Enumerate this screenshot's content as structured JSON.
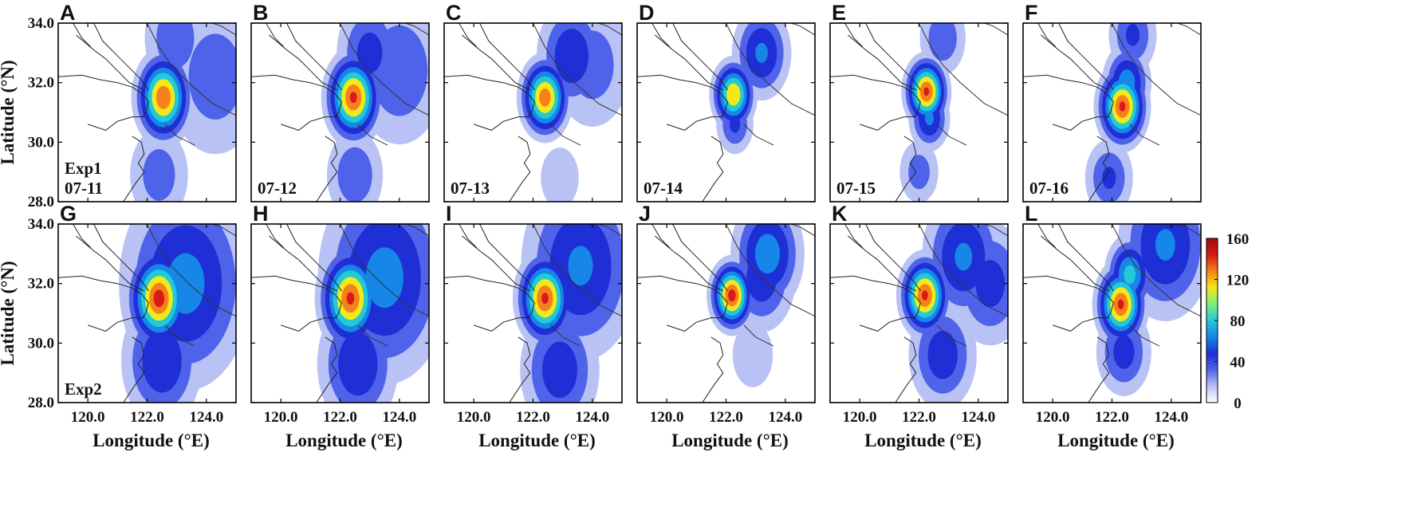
{
  "chart_data": {
    "type": "heatmap",
    "x_axis": {
      "label": "Longitude (°E)",
      "range": [
        119,
        125
      ],
      "ticks": [
        120.0,
        122.0,
        124.0
      ],
      "tick_labels": [
        "120.0",
        "122.0",
        "124.0"
      ]
    },
    "y_axis": {
      "label": "Latitude (°N)",
      "range": [
        28,
        34
      ],
      "ticks": [
        28.0,
        30.0,
        32.0,
        34.0
      ],
      "tick_labels": [
        "28.0",
        "30.0",
        "32.0",
        "34.0"
      ]
    },
    "colorbar": {
      "range": [
        0,
        160
      ],
      "ticks": [
        0,
        40,
        80,
        120,
        160
      ],
      "tick_labels": [
        "0",
        "40",
        "80",
        "120",
        "160"
      ],
      "colors": [
        "#ffffff",
        "#b8c2f4",
        "#4f63ea",
        "#1f2fd6",
        "#1686e8",
        "#22c9d6",
        "#7ff07a",
        "#f2e91a",
        "#f6811a",
        "#d91a16",
        "#9a0a0a"
      ]
    },
    "grid": false,
    "panels": [
      {
        "letter": "A",
        "row": 0,
        "experiment": "Exp1",
        "date": "07-11",
        "annotations": [
          "Exp1",
          "07-11"
        ]
      },
      {
        "letter": "B",
        "row": 0,
        "experiment": "Exp1",
        "date": "07-12",
        "annotations": [
          "07-12"
        ]
      },
      {
        "letter": "C",
        "row": 0,
        "experiment": "Exp1",
        "date": "07-13",
        "annotations": [
          "07-13"
        ]
      },
      {
        "letter": "D",
        "row": 0,
        "experiment": "Exp1",
        "date": "07-14",
        "annotations": [
          "07-14"
        ]
      },
      {
        "letter": "E",
        "row": 0,
        "experiment": "Exp1",
        "date": "07-15",
        "annotations": [
          "07-15"
        ]
      },
      {
        "letter": "F",
        "row": 0,
        "experiment": "Exp1",
        "date": "07-16",
        "annotations": [
          "07-16"
        ]
      },
      {
        "letter": "G",
        "row": 1,
        "experiment": "Exp2",
        "date": "07-11",
        "annotations": [
          "Exp2"
        ]
      },
      {
        "letter": "H",
        "row": 1,
        "experiment": "Exp2",
        "date": "07-12",
        "annotations": []
      },
      {
        "letter": "I",
        "row": 1,
        "experiment": "Exp2",
        "date": "07-13",
        "annotations": []
      },
      {
        "letter": "J",
        "row": 1,
        "experiment": "Exp2",
        "date": "07-14",
        "annotations": []
      },
      {
        "letter": "K",
        "row": 1,
        "experiment": "Exp2",
        "date": "07-15",
        "annotations": []
      },
      {
        "letter": "L",
        "row": 1,
        "experiment": "Exp2",
        "date": "07-16",
        "annotations": []
      }
    ],
    "hotspots": [
      [
        {
          "lon": 122.55,
          "lat": 31.5,
          "peak": 145,
          "spread": 0.45
        },
        {
          "lon": 122.95,
          "lat": 33.5,
          "peak": 35,
          "spread": 0.6
        },
        {
          "lon": 124.3,
          "lat": 32.2,
          "peak": 30,
          "spread": 1.0
        },
        {
          "lon": 122.4,
          "lat": 28.9,
          "peak": 30,
          "spread": 0.6
        }
      ],
      [
        {
          "lon": 122.45,
          "lat": 31.5,
          "peak": 150,
          "spread": 0.45
        },
        {
          "lon": 123.0,
          "lat": 33.0,
          "peak": 45,
          "spread": 0.6
        },
        {
          "lon": 124.0,
          "lat": 32.4,
          "peak": 35,
          "spread": 0.9
        },
        {
          "lon": 122.5,
          "lat": 28.9,
          "peak": 35,
          "spread": 0.55
        }
      ],
      [
        {
          "lon": 122.4,
          "lat": 31.5,
          "peak": 140,
          "spread": 0.4
        },
        {
          "lon": 123.3,
          "lat": 32.9,
          "peak": 55,
          "spread": 0.6
        },
        {
          "lon": 124.0,
          "lat": 32.6,
          "peak": 30,
          "spread": 0.8
        },
        {
          "lon": 122.9,
          "lat": 28.8,
          "peak": 18,
          "spread": 0.5
        }
      ],
      [
        {
          "lon": 122.25,
          "lat": 31.6,
          "peak": 125,
          "spread": 0.35
        },
        {
          "lon": 123.2,
          "lat": 33.0,
          "peak": 60,
          "spread": 0.5
        },
        {
          "lon": 122.3,
          "lat": 30.6,
          "peak": 40,
          "spread": 0.35
        }
      ],
      [
        {
          "lon": 122.25,
          "lat": 31.7,
          "peak": 150,
          "spread": 0.35
        },
        {
          "lon": 122.35,
          "lat": 30.8,
          "peak": 60,
          "spread": 0.35
        },
        {
          "lon": 122.8,
          "lat": 33.5,
          "peak": 35,
          "spread": 0.45
        },
        {
          "lon": 122.0,
          "lat": 29.0,
          "peak": 30,
          "spread": 0.4
        }
      ],
      [
        {
          "lon": 122.35,
          "lat": 31.2,
          "peak": 150,
          "spread": 0.4
        },
        {
          "lon": 122.5,
          "lat": 32.0,
          "peak": 70,
          "spread": 0.4
        },
        {
          "lon": 122.7,
          "lat": 33.6,
          "peak": 40,
          "spread": 0.45
        },
        {
          "lon": 121.9,
          "lat": 28.8,
          "peak": 40,
          "spread": 0.45
        }
      ],
      [
        {
          "lon": 122.4,
          "lat": 31.5,
          "peak": 155,
          "spread": 0.5
        },
        {
          "lon": 123.3,
          "lat": 32.0,
          "peak": 65,
          "spread": 1.1
        },
        {
          "lon": 122.5,
          "lat": 29.4,
          "peak": 55,
          "spread": 0.7
        }
      ],
      [
        {
          "lon": 122.35,
          "lat": 31.5,
          "peak": 150,
          "spread": 0.5
        },
        {
          "lon": 123.5,
          "lat": 32.2,
          "peak": 65,
          "spread": 1.1
        },
        {
          "lon": 122.6,
          "lat": 29.3,
          "peak": 55,
          "spread": 0.7
        }
      ],
      [
        {
          "lon": 122.4,
          "lat": 31.5,
          "peak": 150,
          "spread": 0.45
        },
        {
          "lon": 123.6,
          "lat": 32.6,
          "peak": 60,
          "spread": 1.0
        },
        {
          "lon": 122.9,
          "lat": 29.1,
          "peak": 50,
          "spread": 0.7
        }
      ],
      [
        {
          "lon": 122.2,
          "lat": 31.6,
          "peak": 155,
          "spread": 0.35
        },
        {
          "lon": 123.4,
          "lat": 33.0,
          "peak": 70,
          "spread": 0.6
        },
        {
          "lon": 123.2,
          "lat": 32.2,
          "peak": 50,
          "spread": 0.6
        },
        {
          "lon": 122.9,
          "lat": 29.6,
          "peak": 20,
          "spread": 0.5
        }
      ],
      [
        {
          "lon": 122.2,
          "lat": 31.6,
          "peak": 150,
          "spread": 0.4
        },
        {
          "lon": 123.5,
          "lat": 32.9,
          "peak": 60,
          "spread": 0.7
        },
        {
          "lon": 124.4,
          "lat": 32.0,
          "peak": 45,
          "spread": 0.7
        },
        {
          "lon": 122.8,
          "lat": 29.6,
          "peak": 50,
          "spread": 0.6
        }
      ],
      [
        {
          "lon": 122.3,
          "lat": 31.3,
          "peak": 150,
          "spread": 0.4
        },
        {
          "lon": 122.6,
          "lat": 32.3,
          "peak": 85,
          "spread": 0.4
        },
        {
          "lon": 123.8,
          "lat": 33.3,
          "peak": 60,
          "spread": 0.8
        },
        {
          "lon": 122.4,
          "lat": 29.7,
          "peak": 45,
          "spread": 0.5
        }
      ]
    ]
  }
}
